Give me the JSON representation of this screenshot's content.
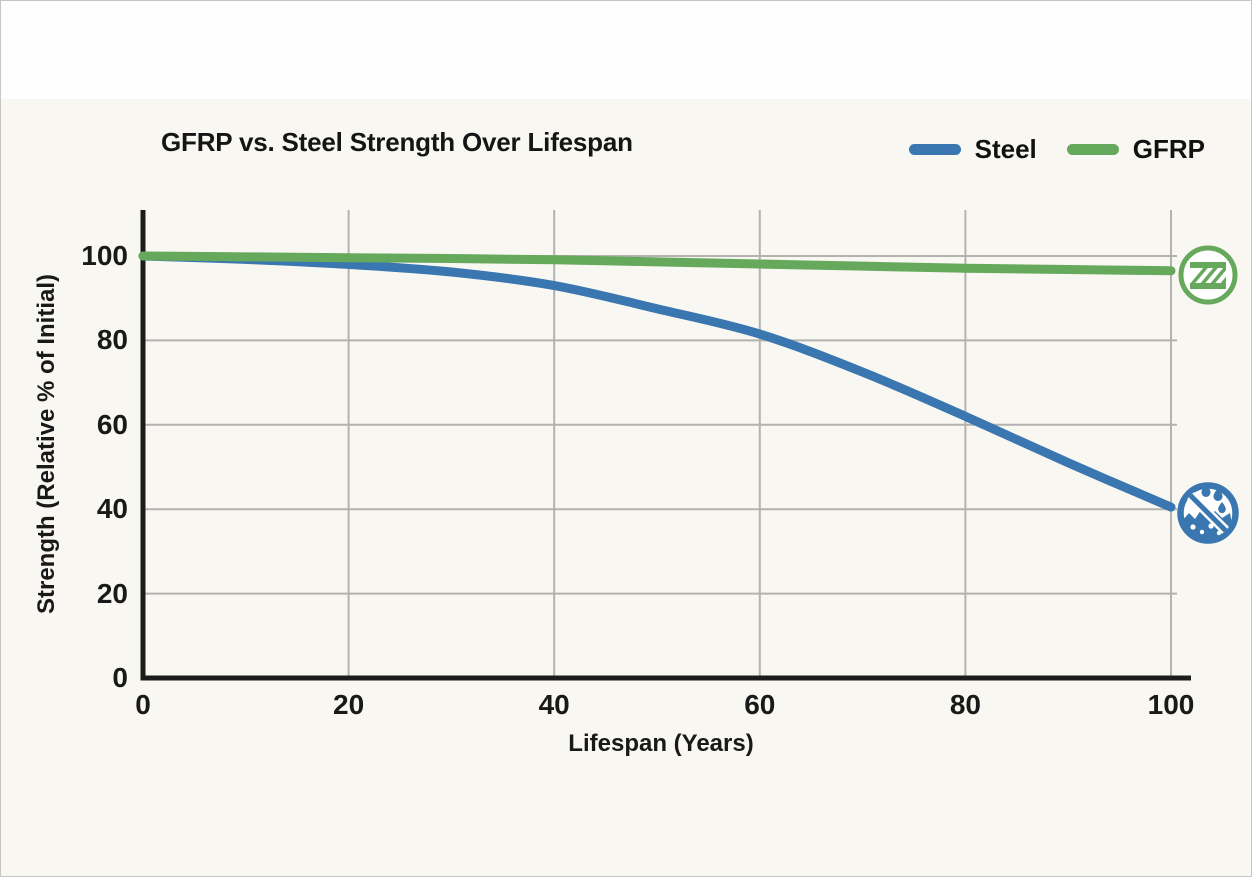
{
  "page": {
    "background": "#f9f7f2",
    "top_band": "#fefefe",
    "border_color": "#c6c6c6"
  },
  "colors": {
    "steel": "#3a76af",
    "gfrp": "#66a85c",
    "grid": "#b4b2af",
    "axis": "#1c1c1c",
    "text": "#191919"
  },
  "header": {
    "title": "GFRP vs. Steel Strength Over Lifespan"
  },
  "legend": {
    "items": [
      {
        "label": "Steel",
        "color": "#3a76af"
      },
      {
        "label": "GFRP",
        "color": "#66a85c"
      }
    ]
  },
  "icons": {
    "gfrp_endpoint": "gfrp-hatched-bar-icon",
    "steel_endpoint": "steel-corrosion-prohibited-icon"
  },
  "chart_data": {
    "type": "line",
    "title": "GFRP vs. Steel Strength Over Lifespan",
    "xlabel": "Lifespan (Years)",
    "ylabel": "Strength (Relative % of Initial)",
    "xlim": [
      0,
      100
    ],
    "ylim": [
      0,
      100
    ],
    "x_ticks": [
      0,
      20,
      40,
      60,
      80,
      100
    ],
    "y_ticks": [
      0,
      20,
      40,
      60,
      80,
      100
    ],
    "grid": true,
    "legend_position": "top-right",
    "x": [
      0,
      10,
      20,
      30,
      40,
      50,
      60,
      70,
      80,
      90,
      100
    ],
    "series": [
      {
        "name": "Steel",
        "color": "#3a76af",
        "values": [
          100,
          99.2,
          98,
          96.2,
          93,
          87.5,
          81.5,
          72.5,
          62,
          51,
          40.5
        ]
      },
      {
        "name": "GFRP",
        "color": "#66a85c",
        "values": [
          100,
          99.8,
          99.6,
          99.4,
          99.1,
          98.6,
          98.1,
          97.6,
          97.1,
          96.8,
          96.5
        ]
      }
    ]
  }
}
